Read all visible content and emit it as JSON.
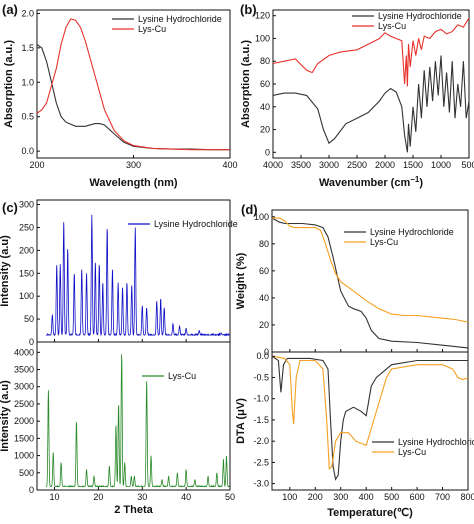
{
  "colors": {
    "black": "#333333",
    "red": "#e8322b",
    "blue": "#1010c8",
    "green": "#2a8a2a",
    "orange": "#f5a020"
  },
  "chart_data": [
    {
      "panel": "(a)",
      "type": "line",
      "xlabel": "Wavelength (nm)",
      "ylabel": "Absorption (a.u.)",
      "xlim": [
        200,
        400
      ],
      "ylim": [
        -0.1,
        2.05
      ],
      "xticks": [
        "200",
        "300",
        "400"
      ],
      "yticks": [
        "0.0",
        "0.5",
        "1.0",
        "1.5",
        "2.0"
      ],
      "series": [
        {
          "name": "Lysine Hydrochloride",
          "color": "black",
          "x": [
            200,
            205,
            210,
            215,
            220,
            225,
            230,
            240,
            250,
            260,
            265,
            270,
            280,
            290,
            300,
            320,
            340,
            360,
            380,
            400
          ],
          "y": [
            1.55,
            1.5,
            1.3,
            1.0,
            0.7,
            0.5,
            0.42,
            0.36,
            0.36,
            0.4,
            0.4,
            0.38,
            0.25,
            0.13,
            0.07,
            0.04,
            0.03,
            0.03,
            0.02,
            0.02
          ]
        },
        {
          "name": "Lys-Cu",
          "color": "red",
          "x": [
            200,
            205,
            210,
            220,
            225,
            230,
            235,
            240,
            245,
            250,
            260,
            270,
            280,
            290,
            300,
            320,
            340,
            360,
            380,
            400
          ],
          "y": [
            0.55,
            0.6,
            0.7,
            1.2,
            1.55,
            1.8,
            1.92,
            1.9,
            1.8,
            1.6,
            1.1,
            0.6,
            0.3,
            0.15,
            0.08,
            0.04,
            0.03,
            0.02,
            0.02,
            0.02
          ]
        }
      ]
    },
    {
      "panel": "(b)",
      "type": "line",
      "xlabel": "Wavenumber (cm",
      "xlabel_sup": "−1",
      "xlabel_end": ")",
      "ylabel": "Absorption (a.u.)",
      "xlim": [
        4000,
        500
      ],
      "ylim": [
        -5,
        125
      ],
      "xticks": [
        "4000",
        "3500",
        "3000",
        "2500",
        "2000",
        "1500",
        "1000",
        "500"
      ],
      "yticks": [
        "0",
        "20",
        "40",
        "60",
        "80",
        "100",
        "120"
      ],
      "series": [
        {
          "name": "Lysine Hydrochloride",
          "color": "black",
          "x": [
            4000,
            3800,
            3600,
            3400,
            3200,
            3100,
            3000,
            2900,
            2700,
            2500,
            2300,
            2100,
            2000,
            1900,
            1800,
            1700,
            1650,
            1600,
            1580,
            1550,
            1500,
            1450,
            1400,
            1350,
            1300,
            1250,
            1200,
            1150,
            1100,
            1050,
            1000,
            950,
            900,
            850,
            800,
            750,
            700,
            650,
            600,
            550,
            500
          ],
          "y": [
            50,
            52,
            52,
            50,
            38,
            20,
            8,
            12,
            25,
            30,
            35,
            45,
            52,
            56,
            53,
            40,
            15,
            0,
            25,
            5,
            40,
            18,
            60,
            30,
            72,
            40,
            75,
            45,
            80,
            50,
            85,
            40,
            70,
            35,
            80,
            30,
            60,
            40,
            80,
            30,
            45
          ]
        },
        {
          "name": "Lys-Cu",
          "color": "red",
          "x": [
            4000,
            3800,
            3600,
            3400,
            3300,
            3200,
            3000,
            2800,
            2500,
            2300,
            2100,
            2000,
            1900,
            1800,
            1700,
            1650,
            1620,
            1600,
            1580,
            1550,
            1500,
            1450,
            1400,
            1350,
            1300,
            1200,
            1100,
            1000,
            900,
            800,
            700,
            600,
            500
          ],
          "y": [
            78,
            80,
            82,
            72,
            70,
            78,
            85,
            88,
            90,
            95,
            100,
            105,
            102,
            100,
            98,
            60,
            85,
            58,
            95,
            75,
            98,
            85,
            100,
            90,
            102,
            100,
            106,
            108,
            104,
            106,
            112,
            110,
            118
          ]
        }
      ]
    },
    {
      "panel": "(c)",
      "type": "line",
      "xlabel": "2 Theta",
      "top": {
        "ylabel": "Intensity (a.u)",
        "ylim": [
          0,
          310
        ],
        "yticks": [
          "0",
          "50",
          "100",
          "150",
          "200",
          "250",
          "300"
        ],
        "series": [
          {
            "name": "Lysine Hydrochloride",
            "color": "blue",
            "peaks": [
              [
                9.5,
                60
              ],
              [
                10.5,
                170
              ],
              [
                11.3,
                170
              ],
              [
                12.1,
                265
              ],
              [
                13,
                205
              ],
              [
                14.5,
                150
              ],
              [
                16.2,
                160
              ],
              [
                17.3,
                150
              ],
              [
                18.5,
                278
              ],
              [
                19.3,
                175
              ],
              [
                20.2,
                170
              ],
              [
                21,
                130
              ],
              [
                22,
                250
              ],
              [
                23.2,
                160
              ],
              [
                24.5,
                130
              ],
              [
                25.5,
                120
              ],
              [
                26.5,
                130
              ],
              [
                27.6,
                125
              ],
              [
                28.4,
                250
              ],
              [
                30,
                80
              ],
              [
                31,
                75
              ],
              [
                33.3,
                90
              ],
              [
                34.2,
                95
              ],
              [
                35,
                75
              ],
              [
                37,
                40
              ],
              [
                38.5,
                35
              ],
              [
                40,
                30
              ],
              [
                43,
                25
              ],
              [
                48,
                20
              ]
            ],
            "baseline": 15,
            "x_start": 8,
            "x_end": 50
          }
        ]
      },
      "bottom": {
        "ylabel": "Intensity (a.u)",
        "ylim": [
          0,
          4300
        ],
        "yticks": [
          "0",
          "500",
          "1000",
          "1500",
          "2000",
          "2500",
          "3000",
          "3500",
          "4000"
        ],
        "series": [
          {
            "name": "Lys-Cu",
            "color": "green",
            "peaks": [
              [
                8.6,
                2900
              ],
              [
                9.7,
                1100
              ],
              [
                11.5,
                800
              ],
              [
                15,
                2000
              ],
              [
                17.3,
                600
              ],
              [
                19,
                400
              ],
              [
                22.5,
                700
              ],
              [
                24,
                1900
              ],
              [
                24.6,
                2500
              ],
              [
                25.3,
                4000
              ],
              [
                26,
                800
              ],
              [
                27.5,
                400
              ],
              [
                28.2,
                400
              ],
              [
                31,
                3200
              ],
              [
                32,
                1000
              ],
              [
                34.5,
                300
              ],
              [
                36,
                400
              ],
              [
                38,
                500
              ],
              [
                40,
                600
              ],
              [
                42,
                300
              ],
              [
                45,
                400
              ],
              [
                47,
                500
              ],
              [
                48.5,
                900
              ],
              [
                49.2,
                1000
              ]
            ],
            "baseline": 100,
            "x_start": 8,
            "x_end": 50
          }
        ]
      },
      "xlim": [
        6,
        50
      ],
      "xticks": [
        "10",
        "20",
        "30",
        "40",
        "50"
      ]
    },
    {
      "panel": "(d)",
      "type": "line",
      "xlabel": "Temperature(℃)",
      "xlim": [
        30,
        800
      ],
      "xticks": [
        "100",
        "200",
        "300",
        "400",
        "500",
        "600",
        "700",
        "800"
      ],
      "top": {
        "ylabel": "Weight (%)",
        "ylim": [
          0,
          105
        ],
        "yticks": [
          "0",
          "20",
          "40",
          "60",
          "80",
          "100"
        ],
        "series": [
          {
            "name": "Lysine Hydrochloride",
            "color": "black",
            "x": [
              30,
              60,
              80,
              100,
              120,
              150,
              200,
              230,
              250,
              270,
              300,
              330,
              350,
              380,
              400,
              420,
              450,
              500,
              600,
              700,
              800
            ],
            "y": [
              99,
              96,
              95,
              95,
              95,
              95,
              94,
              92,
              85,
              70,
              45,
              34,
              32,
              30,
              25,
              16,
              10,
              8,
              7,
              5,
              3
            ]
          },
          {
            "name": "Lys-Cu",
            "color": "orange",
            "x": [
              30,
              60,
              80,
              100,
              120,
              150,
              200,
              220,
              240,
              260,
              280,
              300,
              350,
              400,
              450,
              500,
              550,
              600,
              650,
              700,
              750,
              800
            ],
            "y": [
              99,
              99,
              97,
              93,
              92,
              92,
              92,
              90,
              80,
              68,
              58,
              52,
              45,
              38,
              32,
              28,
              27,
              27,
              26,
              25,
              24,
              22
            ]
          }
        ]
      },
      "bottom": {
        "ylabel": "DTA (μV)",
        "ylim": [
          -3.15,
          0.1
        ],
        "yticks": [
          "0.0",
          "-0.5",
          "-1.0",
          "-1.5",
          "-2.0",
          "-2.5",
          "-3.0"
        ],
        "series": [
          {
            "name": "Lysine Hydrochloride",
            "color": "black",
            "x": [
              30,
              55,
              65,
              75,
              90,
              120,
              180,
              230,
              250,
              260,
              270,
              280,
              290,
              300,
              310,
              320,
              350,
              380,
              400,
              420,
              440,
              460,
              500,
              600,
              800
            ],
            "y": [
              0,
              -0.1,
              -0.85,
              -0.2,
              -0.05,
              -0.05,
              -0.05,
              -0.1,
              -0.3,
              -1.5,
              -2.6,
              -2.9,
              -2.8,
              -2.0,
              -1.5,
              -1.3,
              -1.2,
              -1.3,
              -1.4,
              -0.7,
              -0.5,
              -0.4,
              -0.2,
              -0.1,
              -0.1
            ]
          },
          {
            "name": "Lys-Cu",
            "color": "orange",
            "x": [
              30,
              80,
              100,
              110,
              115,
              125,
              140,
              200,
              230,
              245,
              255,
              265,
              280,
              300,
              330,
              360,
              400,
              440,
              480,
              500,
              600,
              700,
              740,
              760,
              780,
              800
            ],
            "y": [
              0,
              -0.05,
              -0.2,
              -1.3,
              -1.6,
              -0.5,
              -0.1,
              -0.1,
              -0.3,
              -1.5,
              -2.65,
              -2.6,
              -2.0,
              -1.8,
              -1.8,
              -2.0,
              -2.1,
              -1.3,
              -0.5,
              -0.3,
              -0.2,
              -0.2,
              -0.3,
              -0.5,
              -0.55,
              -0.5
            ]
          }
        ]
      }
    }
  ]
}
